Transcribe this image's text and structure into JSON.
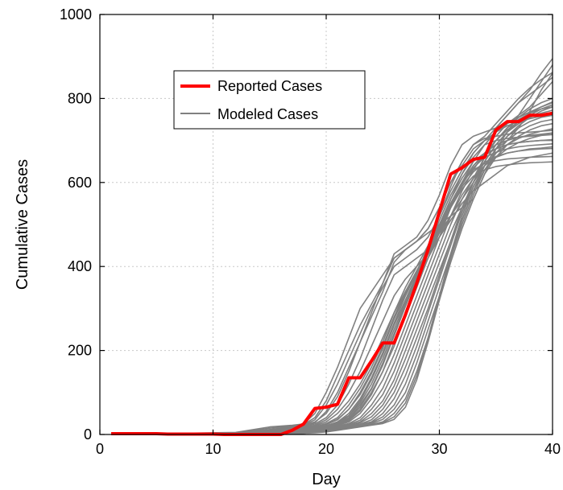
{
  "chart_data": {
    "type": "line",
    "xlabel": "Day",
    "ylabel": "Cumulative Cases",
    "xlim": [
      0,
      40
    ],
    "ylim": [
      0,
      1000
    ],
    "xticks": [
      0,
      10,
      20,
      30,
      40
    ],
    "yticks": [
      0,
      200,
      400,
      600,
      800,
      1000
    ],
    "grid": true,
    "legend": {
      "position": "upper-left inside",
      "entries": [
        "Reported Cases",
        "Modeled Cases"
      ]
    },
    "reported": {
      "name": "Reported Cases",
      "color": "#ff0000",
      "x": [
        1,
        2,
        3,
        4,
        5,
        6,
        7,
        8,
        9,
        10,
        11,
        12,
        13,
        14,
        15,
        16,
        17,
        18,
        19,
        20,
        21,
        22,
        23,
        24,
        25,
        26,
        27,
        28,
        29,
        30,
        31,
        32,
        33,
        34,
        35,
        36,
        37,
        38,
        39,
        40
      ],
      "y": [
        2,
        2,
        2,
        2,
        2,
        1,
        1,
        1,
        1,
        1,
        0,
        0,
        0,
        0,
        0,
        0,
        10,
        25,
        62,
        65,
        72,
        135,
        135,
        175,
        218,
        218,
        285,
        360,
        440,
        530,
        620,
        635,
        655,
        660,
        725,
        745,
        745,
        760,
        760,
        765
      ]
    },
    "modeled": {
      "name": "Modeled Cases",
      "color": "#808080",
      "x": [
        1,
        12,
        15,
        17,
        18,
        19,
        20,
        21,
        22,
        23,
        24,
        25,
        26,
        27,
        28,
        29,
        30,
        31,
        32,
        33,
        34,
        35,
        36,
        37,
        38,
        39,
        40
      ],
      "series": [
        {
          "y": [
            0,
            5,
            18,
            22,
            25,
            50,
            100,
            160,
            230,
            300,
            340,
            380,
            420,
            440,
            460,
            480,
            500,
            520,
            540,
            560,
            620,
            680,
            720,
            760,
            800,
            840,
            880
          ]
        },
        {
          "y": [
            0,
            4,
            15,
            20,
            24,
            40,
            80,
            140,
            200,
            260,
            310,
            360,
            420,
            440,
            460,
            490,
            540,
            600,
            640,
            680,
            700,
            710,
            740,
            760,
            780,
            810,
            840
          ]
        },
        {
          "y": [
            0,
            3,
            12,
            18,
            22,
            30,
            50,
            90,
            150,
            220,
            290,
            360,
            430,
            450,
            470,
            510,
            570,
            640,
            690,
            710,
            720,
            730,
            760,
            790,
            820,
            860,
            895
          ]
        },
        {
          "y": [
            0,
            2,
            10,
            16,
            20,
            25,
            40,
            70,
            120,
            180,
            250,
            320,
            380,
            400,
            420,
            440,
            480,
            520,
            560,
            600,
            640,
            680,
            700,
            730,
            770,
            820,
            860
          ]
        },
        {
          "y": [
            0,
            2,
            8,
            14,
            18,
            22,
            35,
            60,
            100,
            150,
            210,
            270,
            330,
            370,
            400,
            430,
            470,
            510,
            550,
            580,
            600,
            620,
            640,
            650,
            660,
            665,
            670
          ]
        },
        {
          "y": [
            0,
            1,
            6,
            12,
            16,
            20,
            30,
            50,
            80,
            120,
            170,
            230,
            290,
            340,
            380,
            420,
            470,
            520,
            570,
            610,
            640,
            660,
            670,
            675,
            680,
            682,
            685
          ]
        },
        {
          "y": [
            0,
            1,
            5,
            10,
            14,
            18,
            24,
            35,
            60,
            100,
            150,
            210,
            280,
            340,
            390,
            440,
            500,
            560,
            610,
            650,
            670,
            680,
            690,
            695,
            698,
            700,
            700
          ]
        },
        {
          "y": [
            0,
            1,
            4,
            8,
            12,
            16,
            20,
            30,
            45,
            80,
            130,
            190,
            260,
            320,
            380,
            440,
            510,
            570,
            620,
            660,
            690,
            700,
            705,
            708,
            710,
            712,
            714
          ]
        },
        {
          "y": [
            0,
            1,
            4,
            8,
            12,
            16,
            20,
            26,
            40,
            70,
            110,
            170,
            240,
            310,
            380,
            450,
            520,
            590,
            650,
            690,
            705,
            710,
            715,
            718,
            720,
            722,
            724
          ]
        },
        {
          "y": [
            0,
            1,
            3,
            6,
            10,
            14,
            18,
            24,
            35,
            60,
            100,
            150,
            210,
            280,
            350,
            420,
            490,
            560,
            620,
            670,
            700,
            720,
            735,
            745,
            752,
            758,
            762
          ]
        },
        {
          "y": [
            0,
            1,
            3,
            6,
            10,
            14,
            18,
            22,
            30,
            50,
            85,
            130,
            190,
            260,
            330,
            400,
            470,
            540,
            600,
            650,
            690,
            720,
            740,
            755,
            768,
            780,
            790
          ]
        },
        {
          "y": [
            0,
            1,
            3,
            5,
            8,
            12,
            16,
            20,
            26,
            40,
            70,
            110,
            170,
            240,
            310,
            380,
            450,
            520,
            580,
            630,
            670,
            700,
            725,
            745,
            760,
            775,
            785
          ]
        },
        {
          "y": [
            0,
            1,
            3,
            5,
            8,
            12,
            16,
            20,
            24,
            34,
            60,
            95,
            150,
            220,
            290,
            360,
            430,
            500,
            560,
            610,
            660,
            700,
            730,
            755,
            775,
            790,
            800
          ]
        },
        {
          "y": [
            0,
            1,
            2,
            4,
            6,
            10,
            14,
            18,
            22,
            30,
            50,
            80,
            130,
            200,
            270,
            340,
            410,
            480,
            540,
            600,
            650,
            690,
            720,
            745,
            765,
            780,
            792
          ]
        },
        {
          "y": [
            0,
            1,
            2,
            4,
            6,
            10,
            14,
            18,
            22,
            28,
            42,
            70,
            115,
            180,
            250,
            320,
            390,
            460,
            530,
            590,
            640,
            680,
            710,
            735,
            755,
            770,
            780
          ]
        },
        {
          "y": [
            0,
            1,
            2,
            3,
            5,
            8,
            12,
            16,
            20,
            25,
            35,
            60,
            100,
            160,
            230,
            300,
            380,
            460,
            540,
            600,
            650,
            690,
            720,
            740,
            755,
            765,
            772
          ]
        },
        {
          "y": [
            0,
            1,
            2,
            3,
            5,
            8,
            12,
            16,
            20,
            24,
            30,
            50,
            85,
            140,
            210,
            290,
            370,
            450,
            530,
            600,
            660,
            700,
            730,
            750,
            765,
            775,
            780
          ]
        },
        {
          "y": [
            0,
            1,
            2,
            3,
            4,
            6,
            10,
            14,
            18,
            22,
            28,
            42,
            70,
            120,
            190,
            270,
            350,
            430,
            510,
            580,
            640,
            680,
            710,
            730,
            745,
            755,
            760
          ]
        },
        {
          "y": [
            0,
            1,
            2,
            3,
            4,
            6,
            10,
            14,
            18,
            22,
            26,
            36,
            60,
            100,
            170,
            250,
            330,
            420,
            500,
            570,
            630,
            670,
            700,
            720,
            735,
            745,
            750
          ]
        },
        {
          "y": [
            0,
            1,
            1,
            2,
            3,
            5,
            8,
            12,
            16,
            20,
            24,
            30,
            50,
            85,
            150,
            230,
            320,
            410,
            490,
            560,
            620,
            660,
            690,
            710,
            725,
            735,
            740
          ]
        },
        {
          "y": [
            0,
            1,
            1,
            2,
            3,
            5,
            8,
            12,
            16,
            20,
            24,
            28,
            42,
            75,
            140,
            230,
            330,
            430,
            520,
            590,
            640,
            670,
            690,
            705,
            715,
            722,
            728
          ]
        },
        {
          "y": [
            0,
            1,
            1,
            2,
            3,
            4,
            6,
            10,
            14,
            18,
            22,
            26,
            36,
            65,
            130,
            220,
            320,
            420,
            510,
            580,
            630,
            660,
            680,
            695,
            705,
            712,
            718
          ]
        },
        {
          "y": [
            0,
            2,
            10,
            18,
            22,
            35,
            70,
            120,
            180,
            240,
            300,
            350,
            400,
            420,
            440,
            470,
            520,
            580,
            630,
            670,
            700,
            730,
            760,
            790,
            810,
            830,
            850
          ]
        },
        {
          "y": [
            0,
            2,
            9,
            16,
            20,
            28,
            55,
            100,
            160,
            220,
            280,
            340,
            410,
            440,
            460,
            490,
            540,
            600,
            650,
            690,
            710,
            740,
            770,
            800,
            825,
            845,
            862
          ]
        },
        {
          "y": [
            0,
            1,
            5,
            10,
            14,
            18,
            26,
            40,
            70,
            110,
            160,
            220,
            290,
            350,
            400,
            450,
            500,
            550,
            600,
            640,
            670,
            690,
            700,
            708,
            712,
            715,
            718
          ]
        },
        {
          "y": [
            0,
            1,
            4,
            9,
            13,
            17,
            24,
            36,
            60,
            95,
            145,
            205,
            275,
            335,
            385,
            435,
            490,
            545,
            595,
            635,
            660,
            672,
            680,
            685,
            688,
            690,
            692
          ]
        },
        {
          "y": [
            0,
            1,
            3,
            7,
            11,
            15,
            21,
            30,
            50,
            85,
            135,
            195,
            265,
            330,
            385,
            440,
            495,
            550,
            600,
            630,
            645,
            652,
            656,
            658,
            660,
            661,
            662
          ]
        },
        {
          "y": [
            0,
            1,
            3,
            6,
            10,
            14,
            19,
            27,
            44,
            75,
            120,
            180,
            250,
            315,
            375,
            430,
            485,
            540,
            585,
            615,
            630,
            638,
            642,
            645,
            647,
            648,
            649
          ]
        },
        {
          "y": [
            0,
            1,
            2,
            5,
            8,
            12,
            17,
            24,
            38,
            65,
            108,
            165,
            235,
            305,
            370,
            430,
            490,
            550,
            600,
            640,
            665,
            680,
            690,
            695,
            698,
            700,
            702
          ]
        },
        {
          "y": [
            0,
            1,
            2,
            4,
            7,
            11,
            15,
            21,
            33,
            56,
            95,
            150,
            220,
            290,
            355,
            420,
            480,
            540,
            590,
            625,
            648,
            662,
            670,
            675,
            678,
            680,
            681
          ]
        }
      ]
    }
  }
}
